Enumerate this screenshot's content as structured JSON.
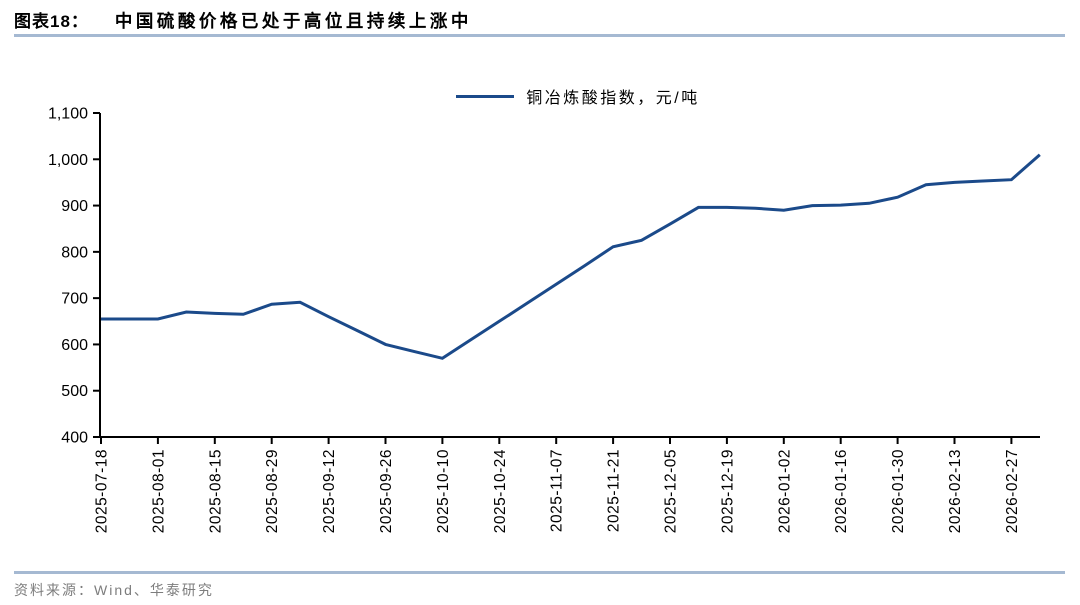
{
  "header": {
    "figure_label": "图表18：",
    "title": "中国硫酸价格已处于高位且持续上涨中"
  },
  "footer": {
    "source": "资料来源：Wind、华泰研究"
  },
  "chart_data": {
    "type": "line",
    "title": "中国硫酸价格已处于高位且持续上涨中",
    "legend_label": "铜冶炼酸指数，元/吨",
    "legend_position": "top-center",
    "grid": false,
    "ylim": [
      400,
      1100
    ],
    "y_tick_labels": [
      "1,100",
      "1,000",
      "900",
      "800",
      "700",
      "600",
      "500",
      "400"
    ],
    "x_tick_labels": [
      "2025-07-18",
      "2025-08-01",
      "2025-08-15",
      "2025-08-29",
      "2025-09-12",
      "2025-09-26",
      "2025-10-10",
      "2025-10-24",
      "2025-11-07",
      "2025-11-21",
      "2025-12-05",
      "2025-12-19",
      "2026-01-02",
      "2026-01-16",
      "2026-01-30",
      "2026-02-13",
      "2026-02-27"
    ],
    "x_tick_every": 2,
    "x": [
      "2025-07-18",
      "2025-07-25",
      "2025-08-01",
      "2025-08-08",
      "2025-08-15",
      "2025-08-22",
      "2025-08-29",
      "2025-09-05",
      "2025-09-12",
      "2025-09-19",
      "2025-09-26",
      "2025-10-03",
      "2025-10-10",
      "2025-10-17",
      "2025-10-24",
      "2025-10-31",
      "2025-11-07",
      "2025-11-14",
      "2025-11-21",
      "2025-11-28",
      "2025-12-05",
      "2025-12-12",
      "2025-12-19",
      "2025-12-26",
      "2026-01-02",
      "2026-01-09",
      "2026-01-16",
      "2026-01-23",
      "2026-01-30",
      "2026-02-06",
      "2026-02-13",
      "2026-02-20",
      "2026-02-27",
      "2026-03-06"
    ],
    "series": [
      {
        "name": "铜冶炼酸指数，元/吨",
        "color": "#1b4a8a",
        "values": [
          655,
          655,
          655,
          670,
          667,
          665,
          687,
          691,
          660,
          630,
          600,
          585,
          570,
          610,
          650,
          690,
          730,
          770,
          811,
          825,
          860,
          896,
          896,
          894,
          890,
          900,
          901,
          905,
          918,
          945,
          950,
          953,
          956,
          1010
        ]
      }
    ]
  },
  "colors": {
    "series_line": "#1b4a8a",
    "axis": "#000000",
    "divider": "#a5b9d2",
    "source_text": "#7d7d7d"
  }
}
